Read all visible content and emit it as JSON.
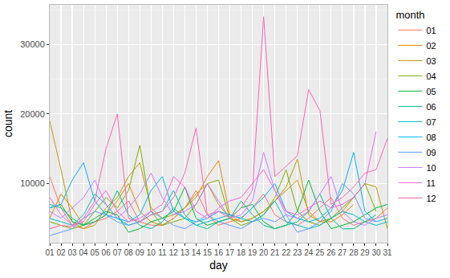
{
  "chart_data": {
    "type": "line",
    "x_label": "day",
    "y_label": "count",
    "legend_title": "month",
    "legend": "right",
    "grid": true,
    "ylim": [
      1500,
      35700
    ],
    "yticks": [
      10000,
      20000,
      30000
    ],
    "categories": [
      "01",
      "02",
      "03",
      "04",
      "05",
      "06",
      "07",
      "08",
      "09",
      "10",
      "11",
      "12",
      "13",
      "14",
      "15",
      "16",
      "17",
      "18",
      "19",
      "20",
      "21",
      "22",
      "23",
      "24",
      "25",
      "26",
      "27",
      "28",
      "29",
      "30",
      "31"
    ],
    "series": [
      {
        "name": "01",
        "color": "#F8766D",
        "values": [
          11000,
          6500,
          4000,
          3500,
          4500,
          5000,
          6000,
          7500,
          4500,
          4000,
          4000,
          5000,
          6500,
          9000,
          5500,
          4000,
          4500,
          5000,
          6500,
          8500,
          5500,
          4500,
          4000,
          5000,
          6500,
          8000,
          5000,
          4000,
          4500,
          5000,
          6500
        ]
      },
      {
        "name": "02",
        "color": "#DE8C00",
        "values": [
          5000,
          8500,
          6500,
          4000,
          4500,
          5500,
          7500,
          10000,
          6000,
          4500,
          4000,
          5000,
          6500,
          8000,
          11000,
          13300,
          5500,
          4500,
          5000,
          6000,
          7500,
          9000,
          10500,
          6000,
          4500,
          4500,
          5500,
          7000,
          null,
          null,
          null
        ]
      },
      {
        "name": "03",
        "color": "#B79F00",
        "values": [
          19000,
          12000,
          4500,
          3500,
          4000,
          6500,
          8000,
          11000,
          13000,
          6500,
          5000,
          5500,
          6500,
          8500,
          10000,
          7000,
          5000,
          4500,
          5000,
          6000,
          7500,
          9500,
          13500,
          5500,
          4500,
          5000,
          6000,
          8000,
          10000,
          9500,
          3500
        ]
      },
      {
        "name": "04",
        "color": "#7CAE00",
        "values": [
          4500,
          4000,
          3500,
          4000,
          6000,
          8000,
          6500,
          9000,
          15500,
          6000,
          4000,
          4500,
          5000,
          7000,
          10000,
          10500,
          5000,
          4000,
          4500,
          5500,
          8000,
          12000,
          6000,
          4500,
          4000,
          5000,
          6500,
          8000,
          10000,
          6000,
          null
        ]
      },
      {
        "name": "05",
        "color": "#00BA38",
        "values": [
          6500,
          7000,
          4500,
          4000,
          5000,
          6000,
          5500,
          3000,
          3500,
          4500,
          5000,
          6000,
          9500,
          5000,
          4000,
          4500,
          5000,
          6500,
          7000,
          4500,
          3500,
          4000,
          6000,
          10500,
          6000,
          3500,
          4000,
          4500,
          5500,
          6500,
          7000
        ]
      },
      {
        "name": "06",
        "color": "#00C08B",
        "values": [
          7000,
          6500,
          5000,
          4000,
          4500,
          5500,
          9000,
          5500,
          4000,
          3500,
          4500,
          6500,
          5000,
          4000,
          3500,
          4500,
          5000,
          7500,
          5500,
          4000,
          3500,
          4000,
          4500,
          6000,
          8500,
          5000,
          3500,
          3500,
          4500,
          5500,
          null
        ]
      },
      {
        "name": "07",
        "color": "#00BFC4",
        "values": [
          5000,
          4500,
          4000,
          5500,
          8500,
          7000,
          5000,
          4000,
          4500,
          5500,
          6000,
          9000,
          5500,
          4000,
          4500,
          5000,
          5500,
          5000,
          4500,
          5500,
          7500,
          4500,
          4000,
          3500,
          4000,
          5000,
          6000,
          5500,
          4500,
          4000,
          4500
        ]
      },
      {
        "name": "08",
        "color": "#00B4F0",
        "values": [
          6500,
          7000,
          10500,
          13000,
          7500,
          5500,
          5000,
          4500,
          5500,
          9000,
          11000,
          6000,
          5000,
          4500,
          5000,
          6000,
          5500,
          5000,
          6500,
          8000,
          10000,
          6000,
          5000,
          4500,
          5000,
          6500,
          9000,
          14500,
          6000,
          4500,
          5000
        ]
      },
      {
        "name": "09",
        "color": "#619CFF",
        "values": [
          2500,
          3000,
          3500,
          5000,
          6000,
          5500,
          4500,
          4000,
          4500,
          6000,
          5000,
          4000,
          3500,
          4500,
          5500,
          4500,
          4000,
          3500,
          4500,
          5000,
          4500,
          5500,
          3000,
          3500,
          4500,
          6000,
          10000,
          8500,
          5000,
          4500,
          null
        ]
      },
      {
        "name": "10",
        "color": "#C77CFF",
        "values": [
          6000,
          5000,
          6500,
          8000,
          10500,
          7000,
          5000,
          6500,
          8500,
          11500,
          8000,
          5500,
          6000,
          7000,
          10000,
          7500,
          5000,
          5500,
          7500,
          14500,
          9000,
          5500,
          5000,
          6000,
          8500,
          11000,
          6000,
          4500,
          4000,
          5000,
          5500
        ]
      },
      {
        "name": "11",
        "color": "#F564E3",
        "values": [
          8000,
          5500,
          4000,
          4500,
          7000,
          9000,
          6000,
          4500,
          5000,
          6000,
          7000,
          11000,
          9500,
          6000,
          5000,
          6500,
          7500,
          8000,
          10000,
          12000,
          9000,
          6000,
          5500,
          6500,
          7500,
          6500,
          7000,
          8000,
          10000,
          17500,
          null
        ]
      },
      {
        "name": "12",
        "color": "#FF64B0",
        "values": [
          3500,
          4000,
          3800,
          5000,
          7500,
          15000,
          20000,
          5000,
          4500,
          5500,
          6000,
          8000,
          11500,
          18000,
          5500,
          6000,
          5000,
          6500,
          9000,
          34000,
          11000,
          12500,
          14000,
          23500,
          20500,
          7000,
          8000,
          9500,
          11500,
          12000,
          16500
        ]
      }
    ]
  }
}
